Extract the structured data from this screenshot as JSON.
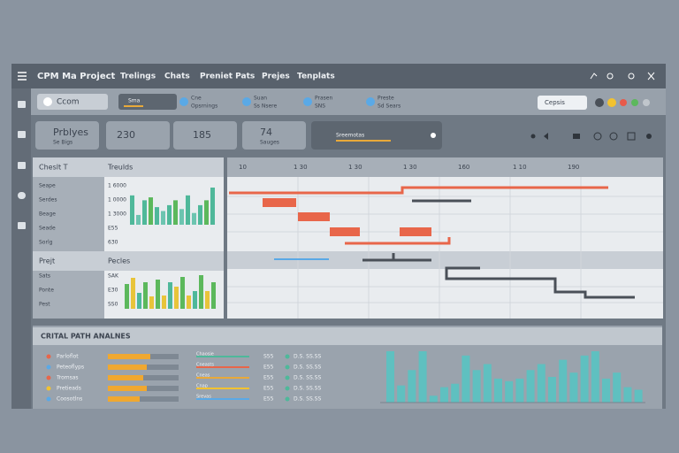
{
  "header": {
    "title": "CPM Ma Project",
    "nav": [
      "Trelings",
      "Chats",
      "Preniet Pats",
      "Prejes",
      "Tenplats"
    ]
  },
  "toolbar": {
    "search": "Ccom",
    "filters": [
      {
        "title": "Sma"
      },
      {
        "title": "Cne",
        "subtitle": "Opsrnings"
      },
      {
        "title": "Suan",
        "subtitle": "Ss Nsere"
      },
      {
        "title": "Prasen",
        "subtitle": "SNS"
      },
      {
        "title": "Preste",
        "subtitle": "Sd Sears"
      }
    ],
    "option": "Cepsis"
  },
  "cards": [
    {
      "title": "Prblyes",
      "subtitle": "Se Bigs"
    },
    {
      "title": "230"
    },
    {
      "title": "185"
    },
    {
      "title": "74",
      "subtitle": "Sauges"
    },
    {
      "title": "Sreemotas"
    }
  ],
  "table": {
    "header": [
      "Cheslt T",
      "Treulds"
    ],
    "rows": [
      [
        "Seape",
        "1 6000"
      ],
      [
        "Serdes",
        "1 0000"
      ],
      [
        "Beage",
        "1 3000"
      ],
      [
        "Seade",
        "E55"
      ],
      [
        "Sorlg",
        "630"
      ]
    ],
    "header2": [
      "Prejt",
      "Pecles"
    ],
    "rows2": [
      [
        "Sats",
        "SAK"
      ],
      [
        "Ponte",
        "E30"
      ],
      [
        "Pest",
        "SS0"
      ]
    ]
  },
  "mini_charts": [
    {
      "values": [
        30,
        10,
        25,
        28,
        18,
        14,
        20,
        25,
        16,
        30,
        12,
        20,
        25,
        38
      ],
      "colors": [
        "#4fb89a",
        "#6cc4b0",
        "#4fb89a",
        "#5cb85c",
        "#4fb89a",
        "#6cc4b0",
        "#4fb89a",
        "#5cb85c",
        "#6cc4b0",
        "#4fb89a",
        "#6cc4b0",
        "#4fb89a",
        "#5cb85c",
        "#4fb89a"
      ]
    },
    {
      "values": [
        28,
        35,
        18,
        30,
        14,
        33,
        15,
        30,
        25,
        36,
        15,
        20,
        38,
        20,
        30
      ],
      "colors": [
        "#5cb85c",
        "#e8c43a",
        "#4fb89a",
        "#5cb85c",
        "#e8c43a",
        "#5cb85c",
        "#e8c43a",
        "#4fb89a",
        "#e8c43a",
        "#5cb85c",
        "#e8c43a",
        "#4fb89a",
        "#5cb85c",
        "#e8c43a",
        "#5cb85c"
      ]
    }
  ],
  "gantt": {
    "ticks": [
      "10",
      "1 30",
      "1 30",
      "1 30",
      "160",
      "1 10",
      "190"
    ]
  },
  "analysis": {
    "title": "CRITAL PATH ANALNES",
    "items": [
      {
        "name": "Parloflot",
        "status": "Chaosje",
        "value": "S55",
        "note": "D.S. SS.SS"
      },
      {
        "name": "Peteoflyps",
        "status": "Cneasts",
        "value": "E55",
        "note": "D.S. SS.SS"
      },
      {
        "name": "Tromsas",
        "status": "Cneas",
        "value": "E55",
        "note": "D.S. SS.SS"
      },
      {
        "name": "Pretieads",
        "status": "Cnap",
        "value": "E55",
        "note": "D.S. SS.SS"
      },
      {
        "name": "Coosotlns",
        "status": "Srevas",
        "value": "E55",
        "note": "D.S. SS.SS"
      }
    ],
    "progress": [
      60,
      55,
      50,
      55,
      45
    ],
    "chart_values": [
      60,
      20,
      38,
      60,
      8,
      18,
      22,
      55,
      38,
      45,
      28,
      25,
      28,
      38,
      45,
      30,
      50,
      35,
      55,
      60,
      28,
      35,
      18,
      15
    ]
  }
}
